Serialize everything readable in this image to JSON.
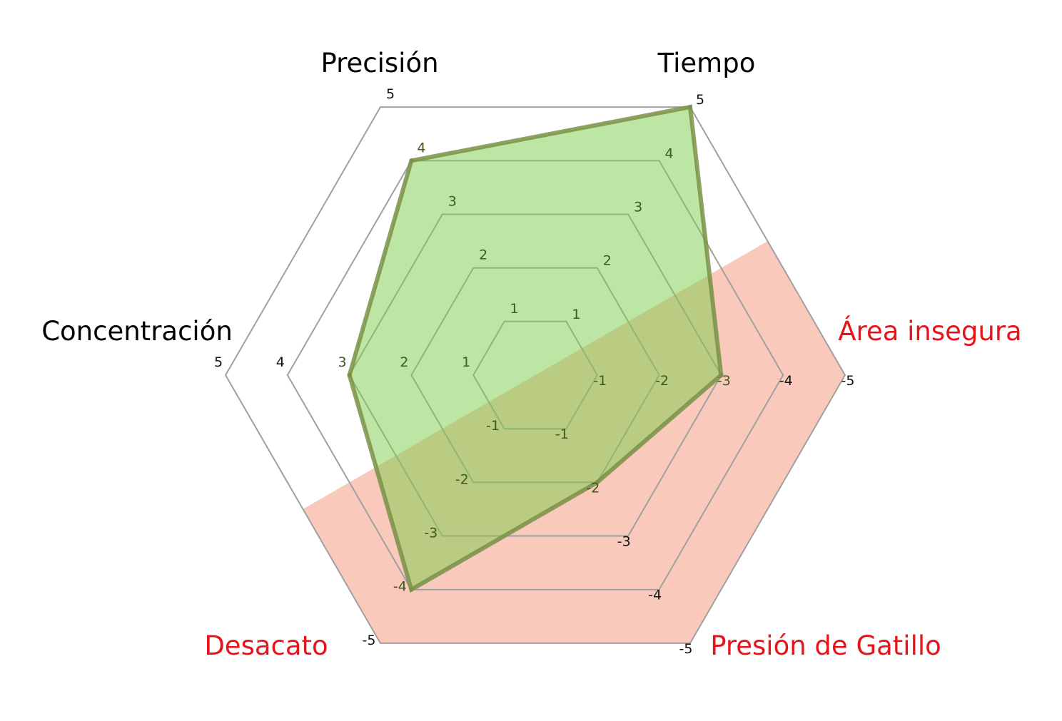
{
  "chart_data": {
    "type": "radar",
    "axes": [
      {
        "label": "Precisión",
        "ticks": [
          "1",
          "2",
          "3",
          "4",
          "5"
        ],
        "color": "#000000",
        "value": 4
      },
      {
        "label": "Tiempo",
        "ticks": [
          "1",
          "2",
          "3",
          "4",
          "5"
        ],
        "color": "#000000",
        "value": 5
      },
      {
        "label": "Área insegura",
        "ticks": [
          "-1",
          "-2",
          "-3",
          "-4",
          "-5"
        ],
        "color": "#e8141b",
        "value": -3
      },
      {
        "label": "Presión de Gatillo",
        "ticks": [
          "-1",
          "-2",
          "-3",
          "-4",
          "-5"
        ],
        "color": "#e8141b",
        "value": -2
      },
      {
        "label": "Desacato",
        "ticks": [
          "-1",
          "-2",
          "-3",
          "-4",
          "-5"
        ],
        "color": "#e8141b",
        "value": -4
      },
      {
        "label": "Concentración",
        "ticks": [
          "1",
          "2",
          "3",
          "4",
          "5"
        ],
        "color": "#000000",
        "value": 3
      }
    ],
    "scale_max": 5,
    "grid": true,
    "colors": {
      "series_fill": "#7ccc4a",
      "series_stroke": "#7a9048",
      "negative_zone": "#f7b8a4",
      "grid": "#a0a0a0"
    }
  }
}
